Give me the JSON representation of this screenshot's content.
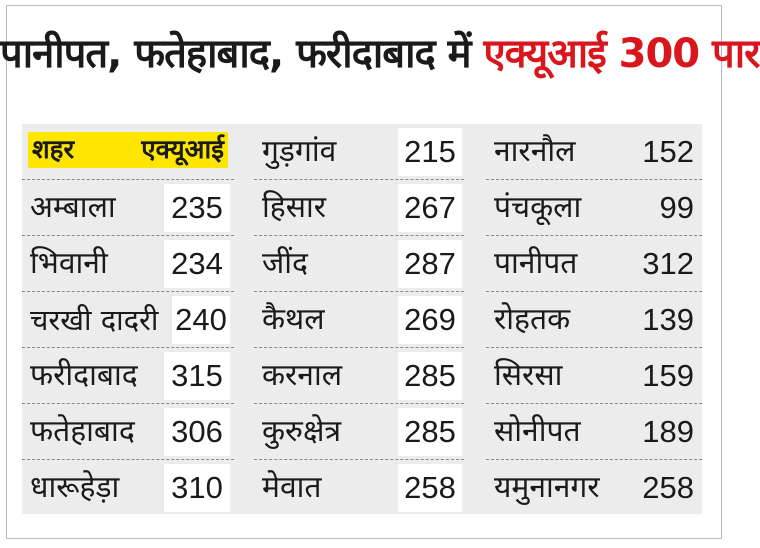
{
  "headline": {
    "prefix": "पानीपत, फतेहाबाद, फरीदाबाद में",
    "highlight": "एक्यूआई 300 पार"
  },
  "table": {
    "header": {
      "city_label": "शहर",
      "aqi_label": "एक्यूआई"
    },
    "col1": [
      {
        "city": "अम्बाला",
        "aqi": "235"
      },
      {
        "city": "भिवानी",
        "aqi": "234"
      },
      {
        "city": "चरखी दादरी",
        "aqi": "240"
      },
      {
        "city": "फरीदाबाद",
        "aqi": "315"
      },
      {
        "city": "फतेहाबाद",
        "aqi": "306"
      },
      {
        "city": "धारूहेड़ा",
        "aqi": "310"
      }
    ],
    "col2": [
      {
        "city": "गुड़गांव",
        "aqi": "215"
      },
      {
        "city": "हिसार",
        "aqi": "267"
      },
      {
        "city": "जींद",
        "aqi": "287"
      },
      {
        "city": "कैथल",
        "aqi": "269"
      },
      {
        "city": "करनाल",
        "aqi": "285"
      },
      {
        "city": "कुरुक्षेत्र",
        "aqi": "285"
      },
      {
        "city": "मेवात",
        "aqi": "258"
      }
    ],
    "col3": [
      {
        "city": "नारनौल",
        "aqi": "152"
      },
      {
        "city": "पंचकूला",
        "aqi": "99"
      },
      {
        "city": "पानीपत",
        "aqi": "312"
      },
      {
        "city": "रोहतक",
        "aqi": "139"
      },
      {
        "city": "सिरसा",
        "aqi": "159"
      },
      {
        "city": "सोनीपत",
        "aqi": "189"
      },
      {
        "city": "यमुनानगर",
        "aqi": "258"
      }
    ]
  },
  "colors": {
    "highlight_red": "#d9161c",
    "header_yellow": "#ffe600",
    "table_bg": "#ececec"
  }
}
